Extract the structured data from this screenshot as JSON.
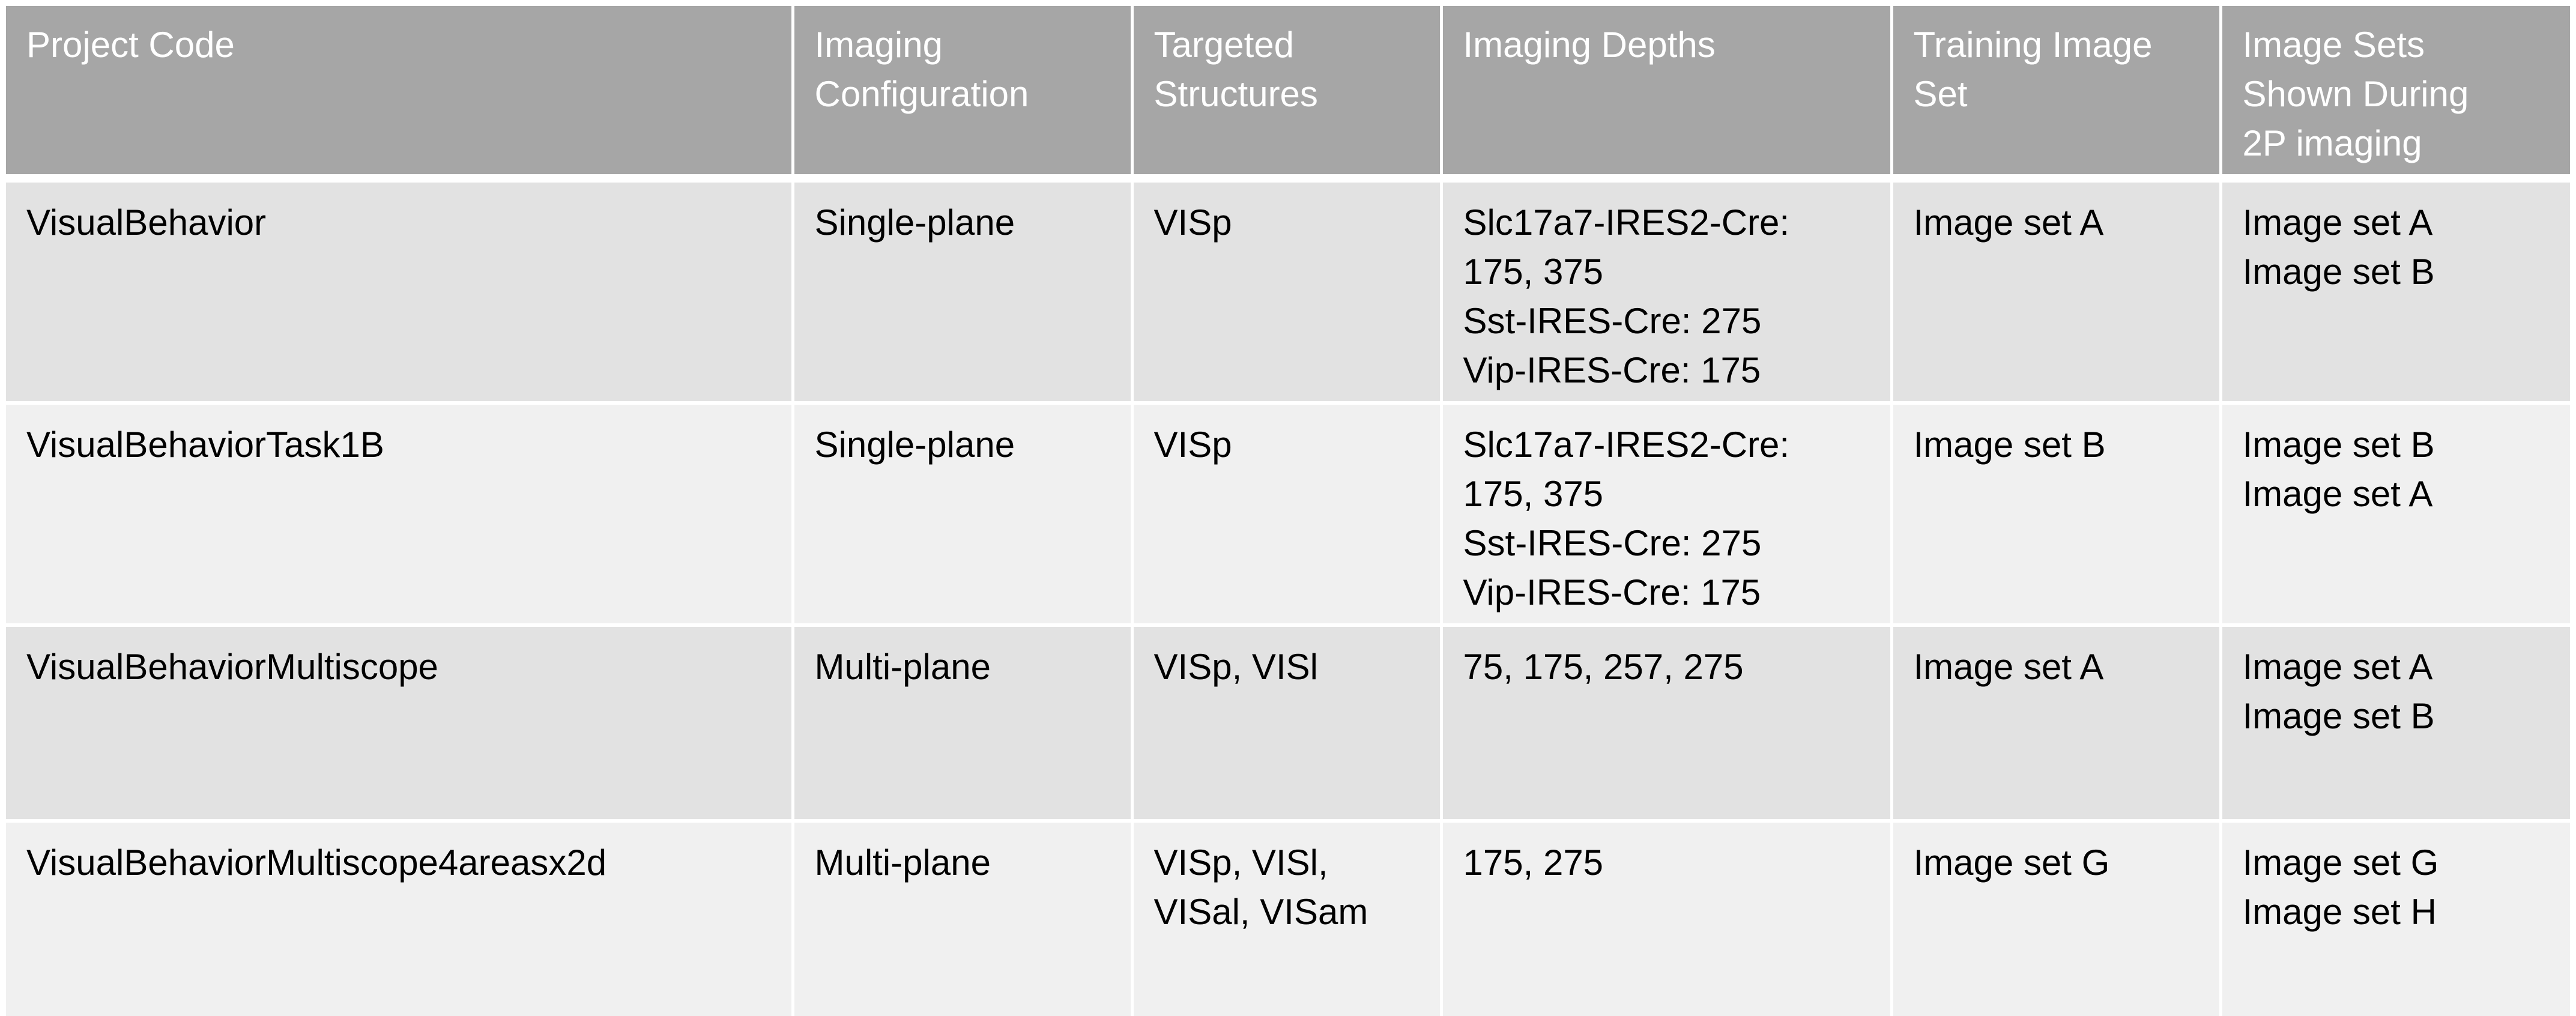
{
  "table": {
    "headers": [
      [
        "Project Code"
      ],
      [
        "Imaging",
        "Configuration"
      ],
      [
        "Targeted",
        "Structures"
      ],
      [
        "Imaging Depths"
      ],
      [
        "Training Image",
        "Set"
      ],
      [
        "Image Sets",
        "Shown During",
        "2P imaging"
      ]
    ],
    "rows": [
      {
        "project_code": "VisualBehavior",
        "imaging_configuration": "Single-plane",
        "targeted_structures": [
          "VISp"
        ],
        "imaging_depths": [
          "Slc17a7-IRES2-Cre:",
          "175, 375",
          "Sst-IRES-Cre: 275",
          "Vip-IRES-Cre: 175"
        ],
        "training_image_set": "Image set A",
        "image_sets_shown": [
          "Image set A",
          "Image set B"
        ]
      },
      {
        "project_code": "VisualBehaviorTask1B",
        "imaging_configuration": "Single-plane",
        "targeted_structures": [
          "VISp"
        ],
        "imaging_depths": [
          "Slc17a7-IRES2-Cre:",
          "175, 375",
          "Sst-IRES-Cre: 275",
          "Vip-IRES-Cre: 175"
        ],
        "training_image_set": "Image set B",
        "image_sets_shown": [
          "Image set B",
          "Image set A"
        ]
      },
      {
        "project_code": "VisualBehaviorMultiscope",
        "imaging_configuration": "Multi-plane",
        "targeted_structures": [
          "VISp, VISl"
        ],
        "imaging_depths": [
          "75, 175, 257, 275"
        ],
        "training_image_set": "Image set A",
        "image_sets_shown": [
          "Image set A",
          "Image set B"
        ]
      },
      {
        "project_code": "VisualBehaviorMultiscope4areasx2d",
        "imaging_configuration": "Multi-plane",
        "targeted_structures": [
          "VISp, VISl,",
          "VISal, VISam"
        ],
        "imaging_depths": [
          "175, 275"
        ],
        "training_image_set": "Image set G",
        "image_sets_shown": [
          "Image set G",
          "Image set H"
        ]
      }
    ]
  }
}
